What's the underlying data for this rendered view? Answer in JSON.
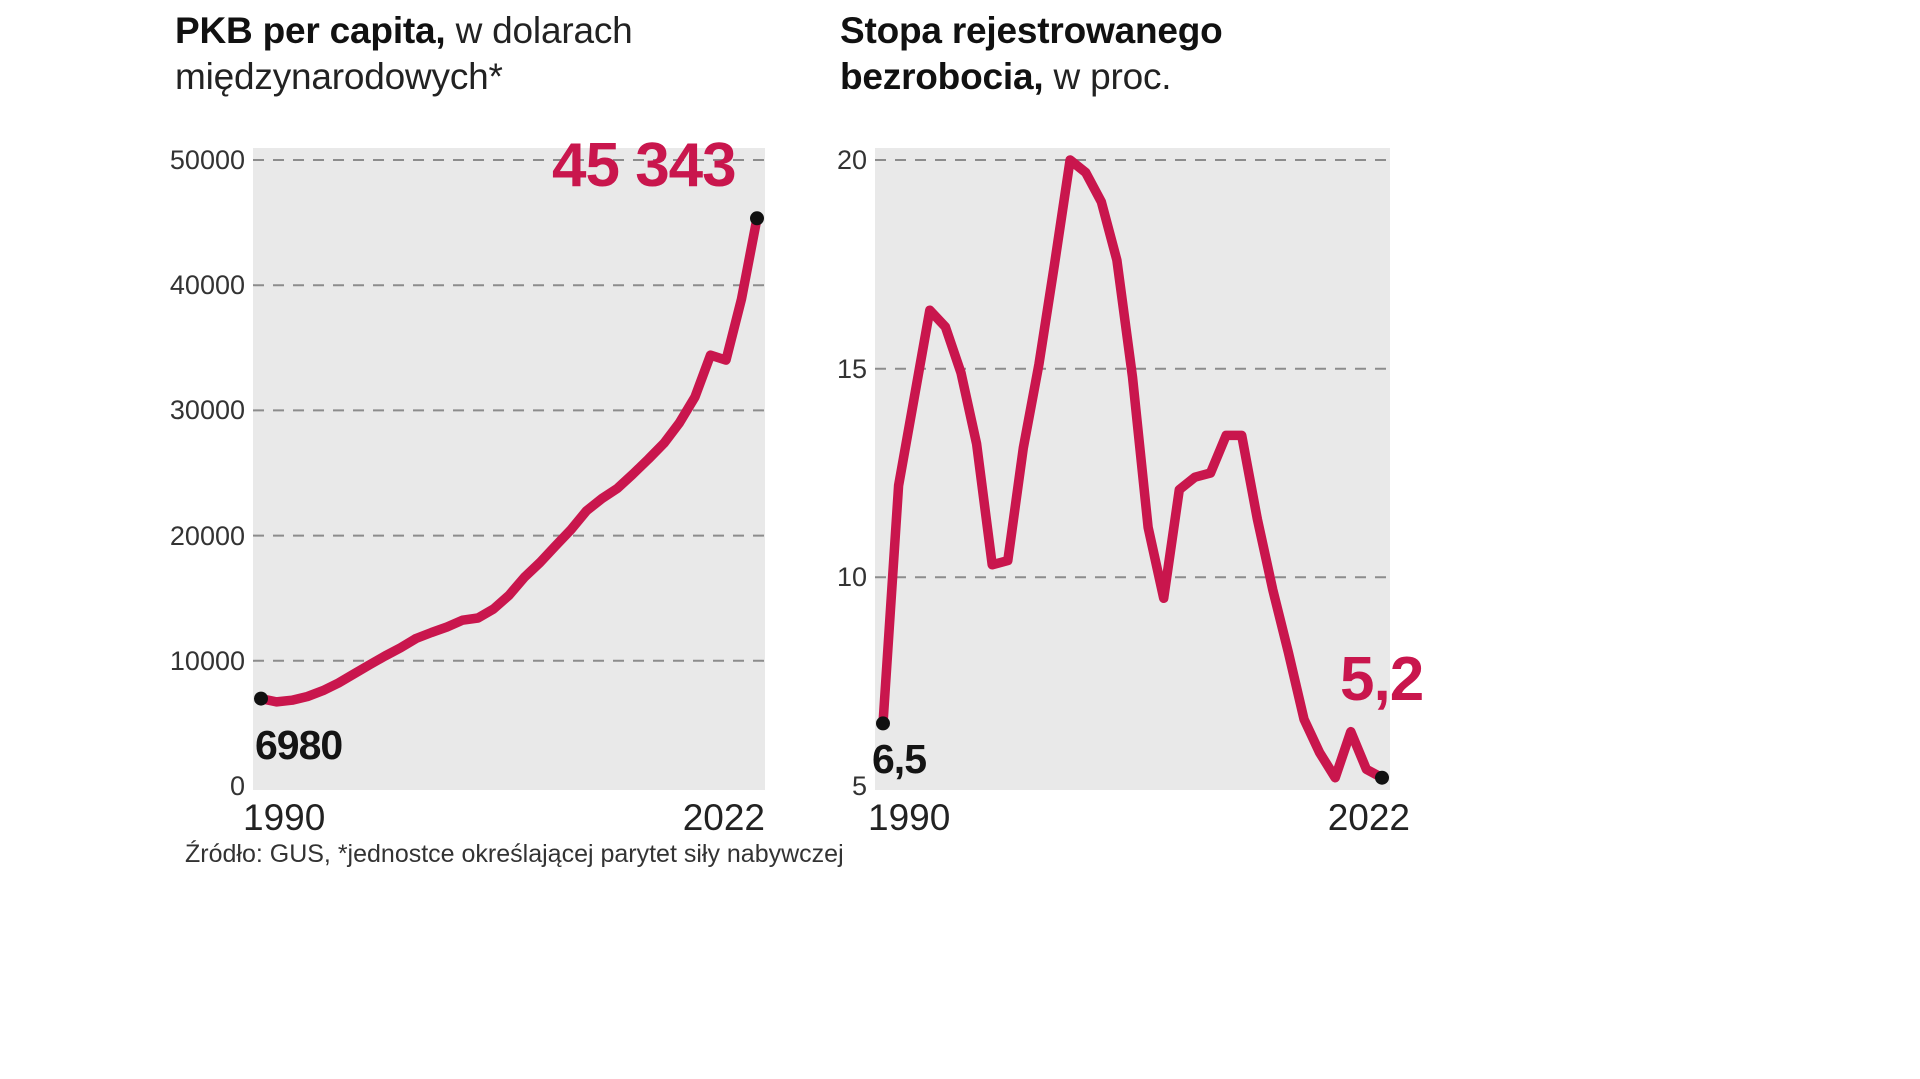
{
  "page": {
    "background_color": "#ffffff",
    "accent_color": "#c9164d",
    "plot_background": "#e9e9e9",
    "grid_color": "#8c8c8c",
    "endpoint_dot_color": "#111111",
    "source_note": "Źródło: GUS, *jednostce określającej parytet siły nabywczej"
  },
  "chart_data": [
    {
      "type": "line",
      "title_lines": [
        {
          "bold": "PKB per capita,",
          "rest": " w dolarach"
        },
        {
          "bold": "",
          "rest": "międzynarodowych*"
        }
      ],
      "x": [
        1990,
        1991,
        1992,
        1993,
        1994,
        1995,
        1996,
        1997,
        1998,
        1999,
        2000,
        2001,
        2002,
        2003,
        2004,
        2005,
        2006,
        2007,
        2008,
        2009,
        2010,
        2011,
        2012,
        2013,
        2014,
        2015,
        2016,
        2017,
        2018,
        2019,
        2020,
        2021,
        2022
      ],
      "values": [
        6980,
        6720,
        6850,
        7150,
        7620,
        8230,
        8950,
        9680,
        10380,
        11040,
        11780,
        12260,
        12700,
        13240,
        13420,
        14140,
        15230,
        16680,
        17850,
        19180,
        20480,
        21980,
        22960,
        23780,
        24920,
        26120,
        27380,
        29020,
        31080,
        34420,
        34020,
        38900,
        45343
      ],
      "ylim": [
        0,
        50000
      ],
      "yticks": [
        0,
        10000,
        20000,
        30000,
        40000,
        50000
      ],
      "ytick_labels": [
        "0",
        "10000",
        "20000",
        "30000",
        "40000",
        "50000"
      ],
      "x_labels": [
        "1990",
        "2022"
      ],
      "start_annotation": "6980",
      "end_annotation": "45 343",
      "line_color": "#c9164d",
      "grid": "dashed horizontal",
      "legend": "none"
    },
    {
      "type": "line",
      "title_lines": [
        {
          "bold": "Stopa rejestrowanego",
          "rest": ""
        },
        {
          "bold": "bezrobocia,",
          "rest": " w proc."
        }
      ],
      "x": [
        1990,
        1991,
        1992,
        1993,
        1994,
        1995,
        1996,
        1997,
        1998,
        1999,
        2000,
        2001,
        2002,
        2003,
        2004,
        2005,
        2006,
        2007,
        2008,
        2009,
        2010,
        2011,
        2012,
        2013,
        2014,
        2015,
        2016,
        2017,
        2018,
        2019,
        2020,
        2021,
        2022
      ],
      "values": [
        6.5,
        12.2,
        14.3,
        16.4,
        16.0,
        14.9,
        13.2,
        10.3,
        10.4,
        13.1,
        15.1,
        17.5,
        20.0,
        19.7,
        19.0,
        17.6,
        14.8,
        11.2,
        9.5,
        12.1,
        12.4,
        12.5,
        13.4,
        13.4,
        11.4,
        9.7,
        8.2,
        6.6,
        5.8,
        5.2,
        6.3,
        5.4,
        5.2
      ],
      "ylim": [
        5,
        20
      ],
      "yticks": [
        5,
        10,
        15,
        20
      ],
      "ytick_labels": [
        "5",
        "10",
        "15",
        "20"
      ],
      "x_labels": [
        "1990",
        "2022"
      ],
      "start_annotation": "6,5",
      "end_annotation": "5,2",
      "line_color": "#c9164d",
      "grid": "dashed horizontal",
      "legend": "none"
    }
  ]
}
